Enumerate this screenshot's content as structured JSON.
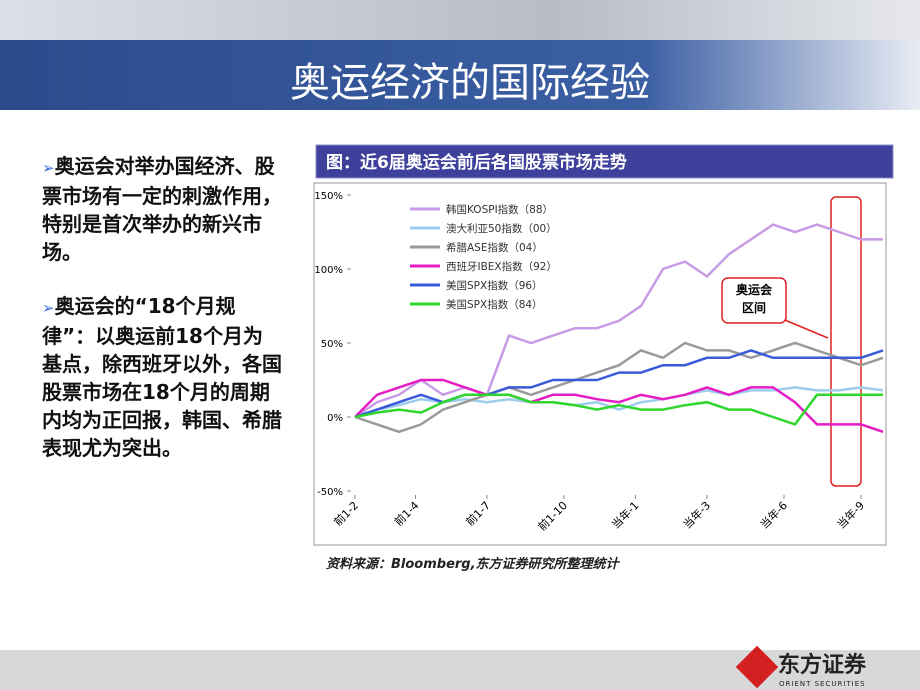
{
  "header": {
    "title": "奥运经济的国际经验"
  },
  "bullets": [
    "奥运会对举办国经济、股票市场有一定的刺激作用，特别是首次举办的新兴市场。",
    "奥运会的“18个月规律”：以奥运前18个月为基点，除西班牙以外，各国股票市场在18个月的周期内均为正回报，韩国、希腊表现尤为突出。"
  ],
  "chart_data": {
    "type": "line",
    "title": "图：近6届奥运会前后各国股票市场走势",
    "source": "资料来源：Bloomberg,东方证券研究所整理统计",
    "annotation": [
      "奥运会",
      "区间"
    ],
    "x": [
      0,
      2,
      4,
      6,
      8,
      10,
      12,
      14,
      16,
      18,
      20,
      22,
      24,
      26,
      28,
      30,
      32,
      34,
      36,
      38,
      40,
      42,
      44,
      46,
      48
    ],
    "xlim": [
      0,
      48
    ],
    "xticks": [
      {
        "value": 0,
        "label": "前1-2"
      },
      {
        "value": 5.5,
        "label": "前1-4"
      },
      {
        "value": 12,
        "label": "前1-7"
      },
      {
        "value": 19,
        "label": "前1-10"
      },
      {
        "value": 25.5,
        "label": "当年-1"
      },
      {
        "value": 32,
        "label": "当年-3"
      },
      {
        "value": 39,
        "label": "当年-6"
      },
      {
        "value": 46,
        "label": "当年-9"
      }
    ],
    "ylim": [
      -50,
      150
    ],
    "yticks": [
      {
        "value": 150,
        "label": "150%"
      },
      {
        "value": 100,
        "label": "100%"
      },
      {
        "value": 50,
        "label": "50%"
      },
      {
        "value": 0,
        "label": "0%"
      },
      {
        "value": -50,
        "label": "-50%"
      }
    ],
    "series": [
      {
        "name": "韩国KOSPI指数（88）",
        "color": "#c89be6",
        "values": [
          0,
          10,
          15,
          25,
          15,
          20,
          15,
          55,
          50,
          55,
          60,
          60,
          65,
          75,
          100,
          105,
          95,
          110,
          120,
          130,
          125,
          130,
          125,
          120,
          120
        ]
      },
      {
        "name": "澳大利亚50指数（00）",
        "color": "#9dcdee",
        "values": [
          0,
          5,
          8,
          12,
          10,
          12,
          10,
          12,
          10,
          10,
          8,
          10,
          5,
          10,
          12,
          15,
          18,
          15,
          18,
          18,
          20,
          18,
          18,
          20,
          18
        ]
      },
      {
        "name": "希腊ASE指数（04）",
        "color": "#9a9a9a",
        "values": [
          0,
          -5,
          -10,
          -5,
          5,
          10,
          15,
          20,
          15,
          20,
          25,
          30,
          35,
          45,
          40,
          50,
          45,
          45,
          40,
          45,
          50,
          45,
          40,
          35,
          40
        ]
      },
      {
        "name": "西班牙IBEX指数（92）",
        "color": "#e61cc4",
        "values": [
          0,
          15,
          20,
          25,
          25,
          20,
          15,
          15,
          10,
          15,
          15,
          12,
          10,
          15,
          12,
          15,
          20,
          15,
          20,
          20,
          10,
          -5,
          -5,
          -5,
          -10
        ]
      },
      {
        "name": "美国SPX指数（96）",
        "color": "#3a5bd9",
        "values": [
          0,
          5,
          10,
          15,
          10,
          15,
          15,
          20,
          20,
          25,
          25,
          25,
          30,
          30,
          35,
          35,
          40,
          40,
          45,
          40,
          40,
          40,
          40,
          40,
          45
        ]
      },
      {
        "name": "美国SPX指数（84）",
        "color": "#2ed62e",
        "values": [
          0,
          3,
          5,
          3,
          10,
          15,
          15,
          15,
          10,
          10,
          8,
          5,
          8,
          5,
          5,
          8,
          10,
          5,
          5,
          0,
          -5,
          15,
          15,
          15,
          15
        ]
      }
    ]
  }
}
